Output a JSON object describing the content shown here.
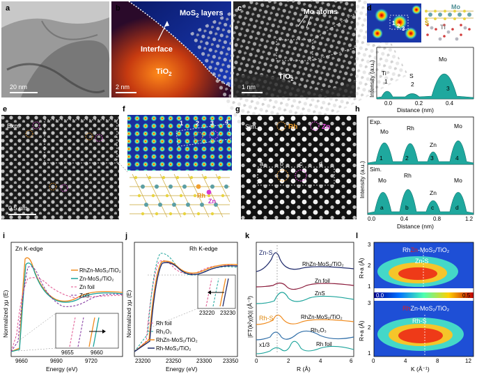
{
  "panels": {
    "a": {
      "label": "a",
      "scale": "20 nm"
    },
    "b": {
      "label": "b",
      "mos2": "MoS",
      "mos2_sub": "2",
      "mos2_tail": " layers",
      "interface": "Interface",
      "tio2": "TiO",
      "tio2_sub": "2",
      "scale": "2 nm"
    },
    "c": {
      "label": "c",
      "mo_atoms": "Mo atoms",
      "tio2": "TiO",
      "tio2_sub": "2",
      "scale": "1 nm"
    },
    "d": {
      "label": "d",
      "mo": "Mo",
      "s": "S",
      "ti": "Ti",
      "n1": "1",
      "n2": "2",
      "n3": "3",
      "ylabel": "Intensity (a.u.)",
      "xlabel": "Distance (nm)",
      "peaks": [
        {
          "name": "Ti",
          "n": "1"
        },
        {
          "name": "S",
          "n": "2"
        },
        {
          "name": "Mo",
          "n": "3"
        }
      ],
      "xticks": [
        "0.0",
        "0.2",
        "0.4"
      ]
    },
    "e": {
      "label": "e",
      "exp": "Exp.",
      "scale": "0.5 nm"
    },
    "f": {
      "label": "f",
      "n1": "1",
      "n2": "2",
      "n3": "3",
      "n4": "4",
      "rh": "Rh",
      "zn": "Zn"
    },
    "g": {
      "label": "g",
      "sim": "Sim.",
      "rh": "Rh",
      "zn": "Zn",
      "a": "a",
      "b": "b",
      "c": "c",
      "d": "d"
    },
    "h": {
      "label": "h",
      "exp": "Exp.",
      "sim": "Sim.",
      "ylabel": "Intensity (a.u.)",
      "xlabel": "Distance (nm)",
      "exp_peaks": [
        {
          "name": "Mo",
          "n": "1"
        },
        {
          "name": "Rh",
          "n": "2"
        },
        {
          "name": "Zn",
          "n": "3"
        },
        {
          "name": "Mo",
          "n": "4"
        }
      ],
      "sim_peaks": [
        {
          "name": "Mo",
          "n": "a"
        },
        {
          "name": "Rh",
          "n": "b"
        },
        {
          "name": "Zn",
          "n": "c"
        },
        {
          "name": "Mo",
          "n": "d"
        }
      ],
      "xticks": [
        "0.0",
        "0.4",
        "0.8",
        "1.2"
      ]
    },
    "i": {
      "label": "i",
      "title": "Zn K-edge",
      "xlabel": "Energy (eV)",
      "ylabel": "Normalized χμ (E)",
      "xticks": [
        "9660",
        "9690",
        "9720"
      ],
      "inset_xticks": [
        "9655",
        "9660"
      ],
      "legend": [
        "RhZn-MoS₂/TiO₂",
        "Zn-MoS₂/TiO₂",
        "Zn foil",
        "ZnS"
      ]
    },
    "j": {
      "label": "j",
      "title": "Rh K-edge",
      "xlabel": "Energy (eV)",
      "ylabel": "Normalized χμ (E)",
      "xticks": [
        "23200",
        "23250",
        "23300",
        "23350"
      ],
      "inset_xticks": [
        "23220",
        "23230"
      ],
      "legend": [
        "Rh foil",
        "Rh₂O₃",
        "RhZn-MoS₂/TiO₂",
        "Rh-MoS₂/TiO₂"
      ]
    },
    "k": {
      "label": "k",
      "xlabel": "R (Å)",
      "ylabel": "|FT(k²χ(k)| (Å⁻³)",
      "xticks": [
        "0",
        "2",
        "4",
        "6"
      ],
      "znS": "Zn-S",
      "rhS": "Rh-S",
      "x13": "x1/3",
      "curves": [
        "RhZn-MoS₂/TiO₂",
        "Zn foil",
        "ZnS",
        "RhZn-MoS₂/TiO₂",
        "Rh₂O₃",
        "Rh foil"
      ]
    },
    "l": {
      "label": "l",
      "xlabel": "K (Å⁻¹)",
      "ylabel": "R+a (Å)",
      "xticks": [
        "0",
        "4",
        "8",
        "12"
      ],
      "yticks": [
        "1",
        "2",
        "3"
      ],
      "top_title_rh": "Rh",
      "top_title_zn": "Zn",
      "top_title_rest": "-MoS₂/TiO₂",
      "top_bond": "Zn-S",
      "bot_title_rh": "Rh",
      "bot_title_zn": "Zn",
      "bot_title_rest": "-MoS₂/TiO₂",
      "bot_bond": "Rh-S",
      "cbar_min": "0.0",
      "cbar_max": "0.5"
    }
  },
  "colors": {
    "orange": "#f08a1c",
    "teal": "#1aa39a",
    "pink": "#e0508c",
    "purple": "#7b2a9a",
    "navy": "#1f2a6b",
    "fill": "#1fa89e"
  }
}
